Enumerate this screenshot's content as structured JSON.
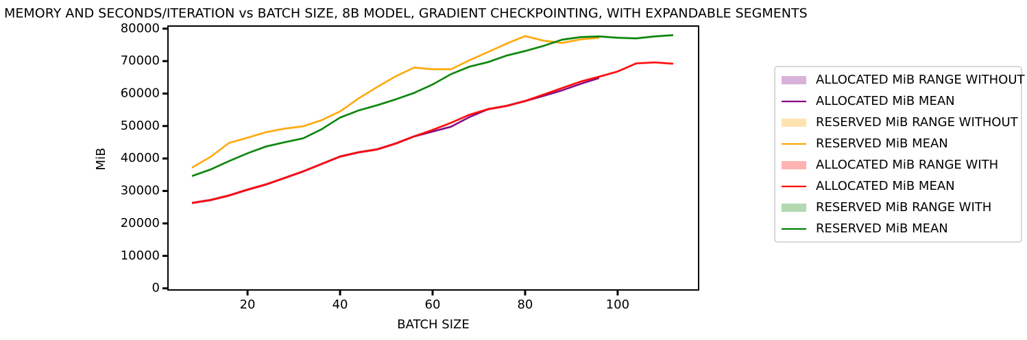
{
  "chart_data": {
    "type": "line",
    "title": "MEMORY AND SECONDS/ITERATION vs BATCH SIZE, 8B MODEL, GRADIENT CHECKPOINTING, WITH EXPANDABLE SEGMENTS",
    "x_label": "BATCH SIZE",
    "y_label": "MiB",
    "xlim": [
      2.8,
      117.5
    ],
    "xticks": [
      20,
      40,
      60,
      80,
      100
    ],
    "ylim": [
      -500,
      80800
    ],
    "yticks": [
      0,
      10000,
      20000,
      30000,
      40000,
      50000,
      60000,
      70000,
      80000
    ],
    "legend": "right",
    "series": [
      {
        "name": "ALLOCATED MiB RANGE WITHOUT",
        "type": "band",
        "color": "#800080",
        "x": [
          8,
          12,
          16,
          20,
          24,
          28,
          32,
          36,
          40,
          44,
          48,
          52,
          56,
          60,
          64,
          68,
          72,
          76,
          80,
          84,
          88,
          92,
          96
        ],
        "low": [
          25900,
          26800,
          28200,
          30000,
          31600,
          33600,
          35600,
          37900,
          40200,
          41500,
          42400,
          44200,
          46400,
          47900,
          49400,
          52400,
          54800,
          55800,
          57300,
          58900,
          60600,
          62600,
          64400
        ],
        "high": [
          26700,
          27600,
          29000,
          30800,
          32400,
          34400,
          36400,
          38700,
          41000,
          42300,
          43200,
          45000,
          47200,
          48700,
          50200,
          53200,
          55600,
          56600,
          58100,
          59700,
          61400,
          63400,
          65200
        ]
      },
      {
        "name": "ALLOCATED MiB MEAN",
        "type": "line",
        "color": "#800080",
        "x": [
          8,
          12,
          16,
          20,
          24,
          28,
          32,
          36,
          40,
          44,
          48,
          52,
          56,
          60,
          64,
          68,
          72,
          76,
          80,
          84,
          88,
          92,
          96
        ],
        "values": [
          26300,
          27200,
          28600,
          30400,
          32000,
          34000,
          36000,
          38300,
          40600,
          41900,
          42800,
          44600,
          46800,
          48300,
          49800,
          52800,
          55200,
          56200,
          57700,
          59300,
          61000,
          63000,
          64800
        ]
      },
      {
        "name": "RESERVED MiB RANGE WITHOUT",
        "type": "band",
        "color": "#ffa500",
        "x": [
          8,
          12,
          16,
          20,
          24,
          28,
          32,
          36,
          40,
          44,
          48,
          52,
          56,
          60,
          64,
          68,
          72,
          76,
          80,
          84,
          88,
          92,
          96
        ],
        "low": [
          36800,
          40100,
          44400,
          46000,
          47700,
          48800,
          49500,
          51400,
          54100,
          58100,
          61600,
          64900,
          67600,
          67100,
          67100,
          69900,
          72400,
          75000,
          77300,
          75900,
          75200,
          76300,
          76800
        ],
        "high": [
          37600,
          40900,
          45200,
          46800,
          48500,
          49600,
          50300,
          52200,
          54900,
          58900,
          62400,
          65700,
          68400,
          67900,
          67900,
          70700,
          73200,
          75800,
          78100,
          76700,
          76000,
          77100,
          77600
        ]
      },
      {
        "name": "RESERVED MiB MEAN",
        "type": "line",
        "color": "#ffa500",
        "x": [
          8,
          12,
          16,
          20,
          24,
          28,
          32,
          36,
          40,
          44,
          48,
          52,
          56,
          60,
          64,
          68,
          72,
          76,
          80,
          84,
          88,
          92,
          96
        ],
        "values": [
          37200,
          40500,
          44800,
          46400,
          48100,
          49200,
          49900,
          51800,
          54500,
          58500,
          62000,
          65300,
          68000,
          67500,
          67500,
          70300,
          72800,
          75400,
          77700,
          76300,
          75600,
          76700,
          77200
        ]
      },
      {
        "name": "ALLOCATED MiB RANGE WITH",
        "type": "band",
        "color": "#ff0000",
        "x": [
          8,
          12,
          16,
          20,
          24,
          28,
          32,
          36,
          40,
          44,
          48,
          52,
          56,
          60,
          64,
          68,
          72,
          76,
          80,
          84,
          88,
          92,
          96,
          100,
          104,
          108,
          112
        ],
        "low": [
          25900,
          26800,
          28200,
          30000,
          31600,
          33600,
          35600,
          37900,
          40200,
          41500,
          42400,
          44200,
          46400,
          48400,
          50600,
          53100,
          54800,
          55800,
          57300,
          59300,
          61300,
          63300,
          64800,
          66400,
          68900,
          69200,
          68800
        ],
        "high": [
          26700,
          27600,
          29000,
          30800,
          32400,
          34400,
          36400,
          38700,
          41000,
          42300,
          43200,
          45000,
          47200,
          49200,
          51400,
          53900,
          55600,
          56600,
          58100,
          60100,
          62100,
          64100,
          65600,
          67200,
          69700,
          70000,
          69600
        ]
      },
      {
        "name": "ALLOCATED MiB MEAN",
        "type": "line",
        "color": "#ff0000",
        "x": [
          8,
          12,
          16,
          20,
          24,
          28,
          32,
          36,
          40,
          44,
          48,
          52,
          56,
          60,
          64,
          68,
          72,
          76,
          80,
          84,
          88,
          92,
          96,
          100,
          104,
          108,
          112
        ],
        "values": [
          26300,
          27200,
          28600,
          30400,
          32000,
          34000,
          36000,
          38300,
          40600,
          41900,
          42800,
          44600,
          46800,
          48800,
          51000,
          53500,
          55200,
          56200,
          57700,
          59700,
          61700,
          63700,
          65200,
          66800,
          69300,
          69600,
          69200
        ]
      },
      {
        "name": "RESERVED MiB RANGE WITH",
        "type": "band",
        "color": "#008000",
        "x": [
          8,
          12,
          16,
          20,
          24,
          28,
          32,
          36,
          40,
          44,
          48,
          52,
          56,
          60,
          64,
          68,
          72,
          76,
          80,
          84,
          88,
          92,
          96,
          100,
          104,
          108,
          112
        ],
        "low": [
          34200,
          36200,
          38800,
          41200,
          43300,
          44600,
          45800,
          48600,
          52200,
          54400,
          56000,
          57800,
          59800,
          62400,
          65600,
          67900,
          69300,
          71300,
          72700,
          74300,
          76200,
          77000,
          77200,
          76800,
          76600,
          77200,
          77600
        ],
        "high": [
          35000,
          37000,
          39600,
          42000,
          44100,
          45400,
          46600,
          49400,
          53000,
          55200,
          56800,
          58600,
          60600,
          63200,
          66400,
          68700,
          70100,
          72100,
          73500,
          75100,
          77000,
          77800,
          78000,
          77600,
          77400,
          78000,
          78400
        ]
      },
      {
        "name": "RESERVED MiB MEAN",
        "type": "line",
        "color": "#008000",
        "x": [
          8,
          12,
          16,
          20,
          24,
          28,
          32,
          36,
          40,
          44,
          48,
          52,
          56,
          60,
          64,
          68,
          72,
          76,
          80,
          84,
          88,
          92,
          96,
          100,
          104,
          108,
          112
        ],
        "values": [
          34600,
          36600,
          39200,
          41600,
          43700,
          45000,
          46200,
          49000,
          52600,
          54800,
          56400,
          58200,
          60200,
          62800,
          66000,
          68300,
          69700,
          71700,
          73100,
          74700,
          76600,
          77400,
          77600,
          77200,
          77000,
          77600,
          78000
        ]
      }
    ]
  }
}
